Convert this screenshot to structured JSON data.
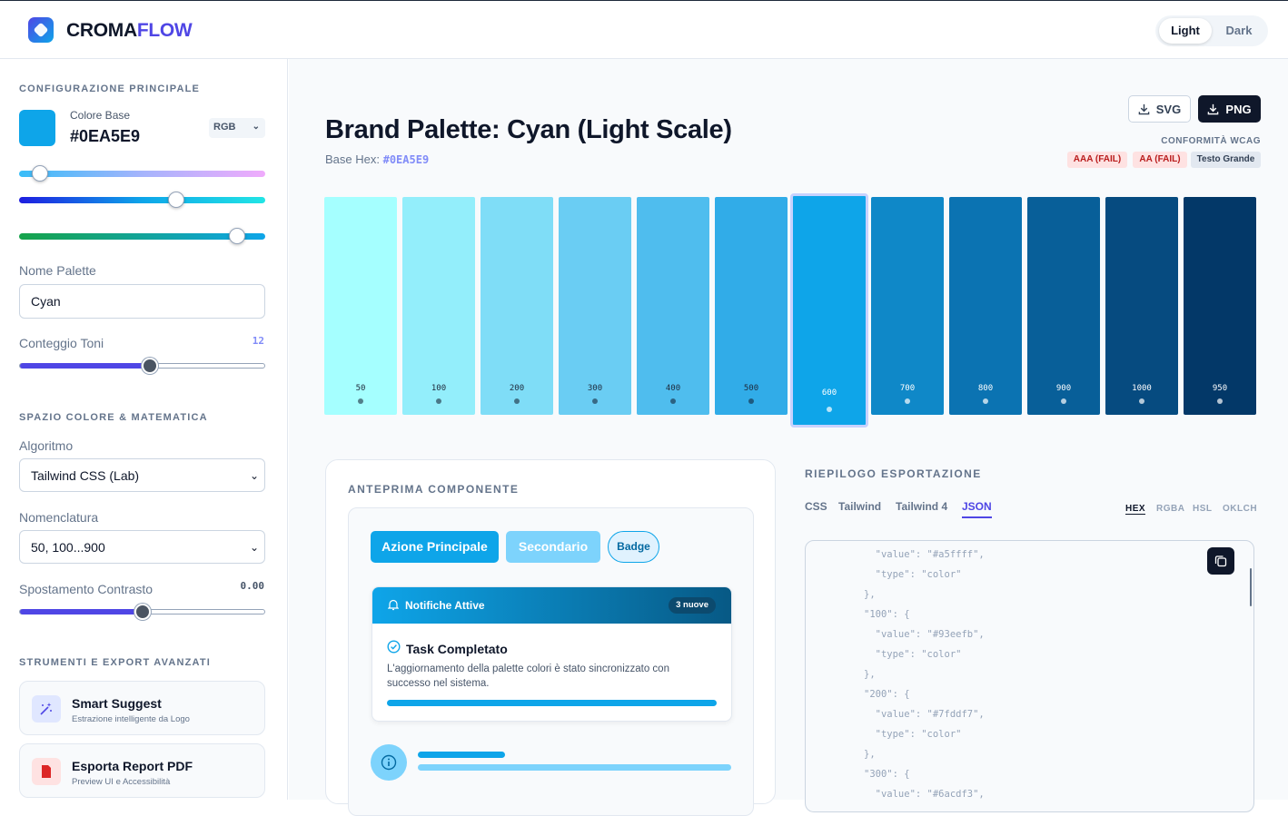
{
  "brand": {
    "part1": "CROMA",
    "part2": "FLOW"
  },
  "theme": {
    "light": "Light",
    "dark": "Dark"
  },
  "sidebar": {
    "config_title": "CONFIGURAZIONE PRINCIPALE",
    "base_color_label": "Colore Base",
    "base_color_value": "#0EA5E9",
    "color_mode": "RGB",
    "palette_name_label": "Nome Palette",
    "palette_name_value": "Cyan",
    "tone_count_label": "Conteggio Toni",
    "tone_count_value": "12",
    "tone_count_fraction": 0.53,
    "colorspace_title": "SPAZIO COLORE & MATEMATICA",
    "algorithm_label": "Algoritmo",
    "algorithm_value": "Tailwind CSS (Lab)",
    "nomenclature_label": "Nomenclatura",
    "nomenclature_value": "50, 100...900",
    "contrast_label": "Spostamento Contrasto",
    "contrast_value": "0.00",
    "contrast_fraction": 0.5,
    "tools_title": "STRUMENTI E EXPORT AVANZATI",
    "tools": [
      {
        "title": "Smart Suggest",
        "subtitle": "Estrazione intelligente da Logo",
        "icon": "magic-wand-icon"
      },
      {
        "title": "Esporta Report PDF",
        "subtitle": "Preview UI e Accessibilità",
        "icon": "pdf-file-icon"
      }
    ]
  },
  "main": {
    "title": "Brand Palette: Cyan (Light Scale)",
    "base_hex_label": "Base Hex:",
    "base_hex_value": "#0EA5E9",
    "export_svg": "SVG",
    "export_png": "PNG",
    "wcag_title": "CONFORMITÀ WCAG",
    "wcag_badges": [
      "AAA (FAIL)",
      "AA (FAIL)",
      "Testo Grande"
    ],
    "swatches": [
      {
        "label": "50",
        "color": "#a5ffff"
      },
      {
        "label": "100",
        "color": "#93eefb"
      },
      {
        "label": "200",
        "color": "#7fddf7"
      },
      {
        "label": "300",
        "color": "#6acdf3"
      },
      {
        "label": "400",
        "color": "#4fbdee"
      },
      {
        "label": "500",
        "color": "#31ace8"
      },
      {
        "label": "600",
        "color": "#0ea5e9"
      },
      {
        "label": "700",
        "color": "#0f88c8"
      },
      {
        "label": "800",
        "color": "#0b73b2"
      },
      {
        "label": "900",
        "color": "#085f99"
      },
      {
        "label": "1000",
        "color": "#064b80"
      },
      {
        "label": "950",
        "color": "#033868"
      }
    ],
    "selected_swatch": "600"
  },
  "preview": {
    "title": "ANTEPRIMA COMPONENTE",
    "primary_button": "Azione Principale",
    "secondary_button": "Secondario",
    "badge": "Badge",
    "notification_title": "Notifiche Attive",
    "notification_count": "3 nuove",
    "task_title": "Task Completato",
    "task_description": "L'aggiornamento della palette colori è stato sincronizzato con successo nel sistema."
  },
  "export": {
    "title": "RIEPILOGO ESPORTAZIONE",
    "tabs": [
      "CSS",
      "Tailwind",
      "Tailwind 4",
      "JSON"
    ],
    "active_tab": "JSON",
    "formats": [
      "HEX",
      "RGBA",
      "HSL",
      "OKLCH"
    ],
    "active_format": "HEX",
    "code": "  \"value\": \"#a5ffff\",\n  \"type\": \"color\"\n},\n\"100\": {\n  \"value\": \"#93eefb\",\n  \"type\": \"color\"\n},\n\"200\": {\n  \"value\": \"#7fddf7\",\n  \"type\": \"color\"\n},\n\"300\": {\n  \"value\": \"#6acdf3\","
  }
}
